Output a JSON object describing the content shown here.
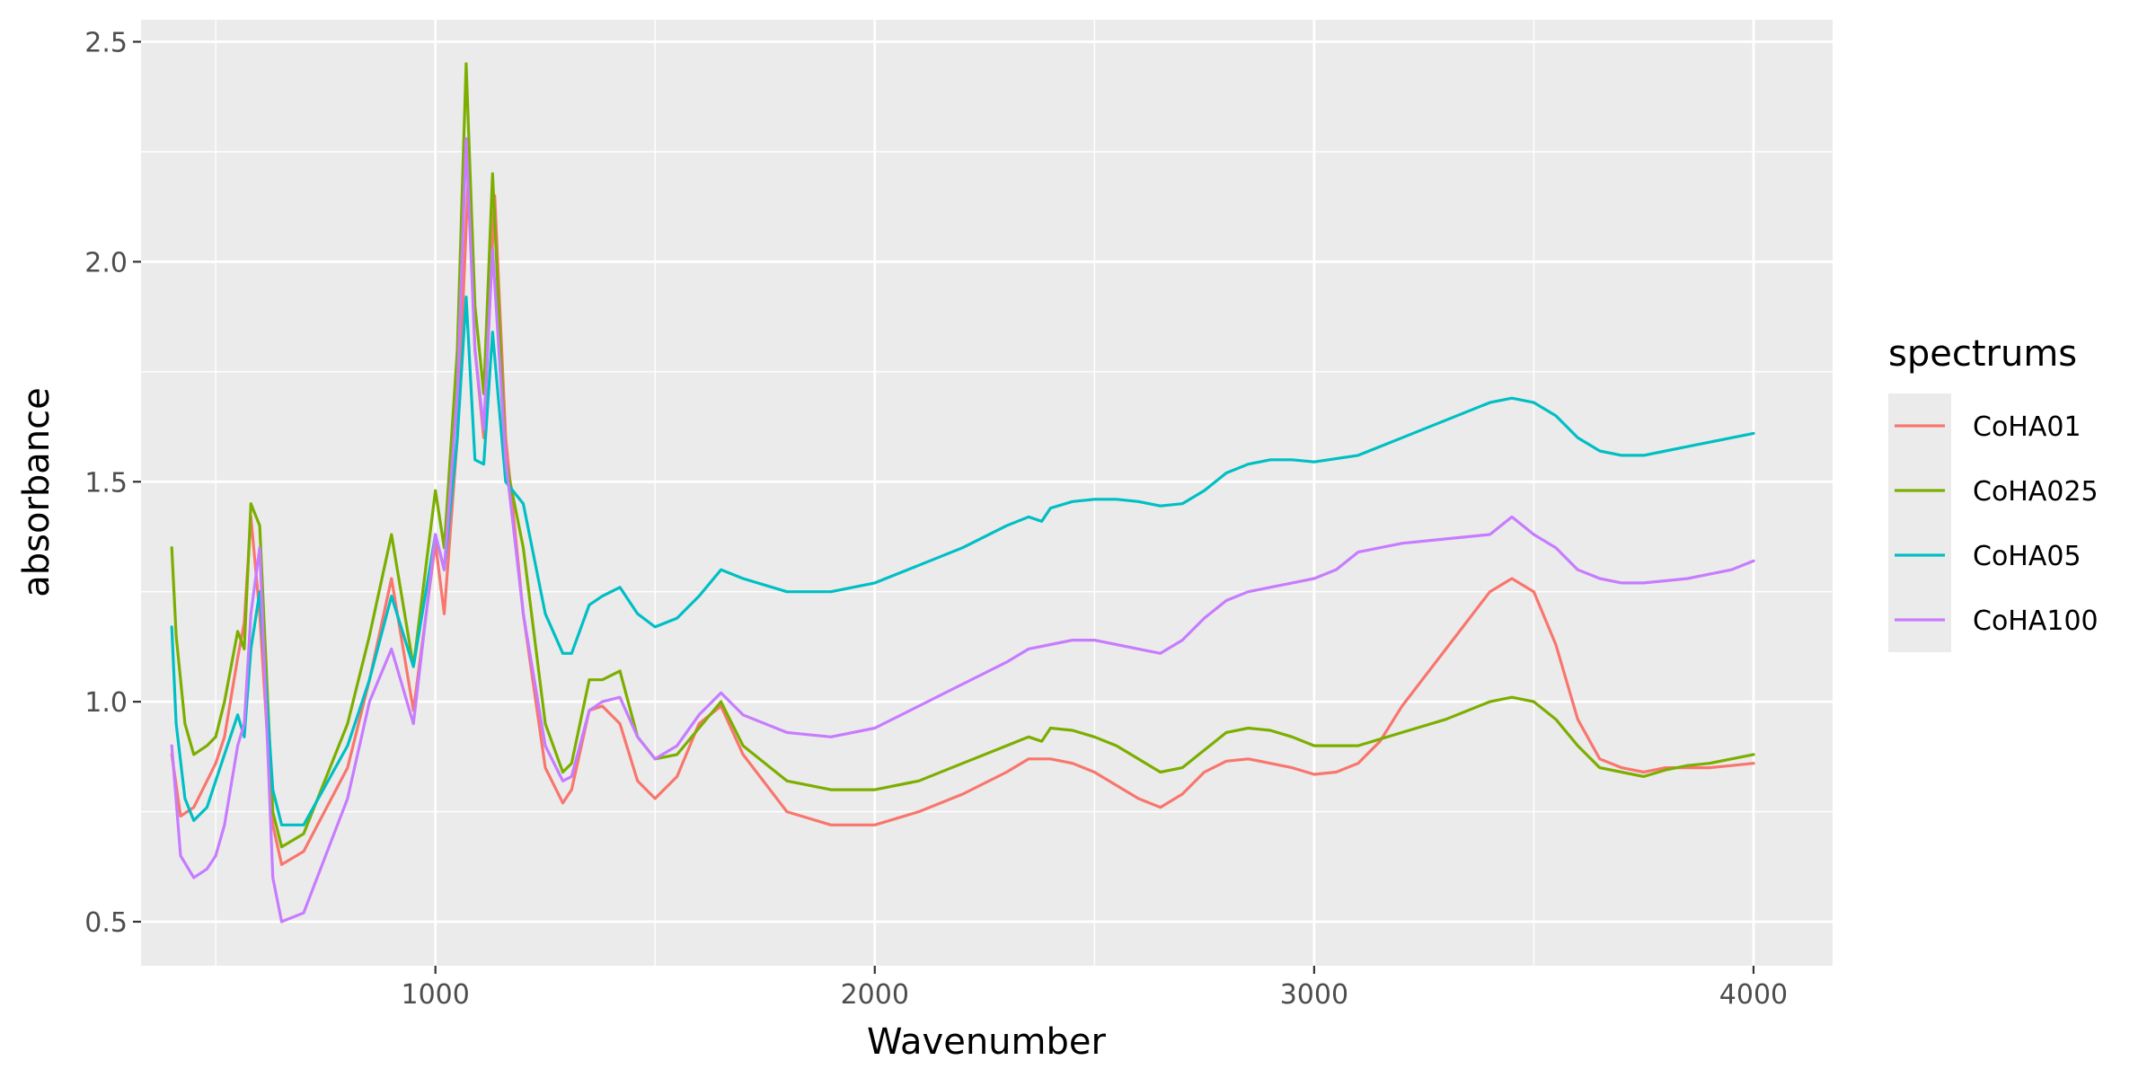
{
  "chart_data": {
    "type": "line",
    "title": "",
    "xlabel": "Wavenumber",
    "ylabel": "absorbance",
    "xlim": [
      330,
      4180
    ],
    "ylim": [
      0.4,
      2.55
    ],
    "xticks": [
      1000,
      2000,
      3000,
      4000
    ],
    "xtick_labels": [
      "1000",
      "2000",
      "3000",
      "4000"
    ],
    "yticks": [
      0.5,
      1.0,
      1.5,
      2.0,
      2.5
    ],
    "ytick_labels": [
      "0.5",
      "1.0",
      "1.5",
      "2.0",
      "2.5"
    ],
    "grid": true,
    "legend": {
      "title": "spectrums",
      "position": "right"
    },
    "series": [
      {
        "name": "CoHA01",
        "color": "#F8766D",
        "x": [
          400,
          420,
          450,
          480,
          500,
          520,
          550,
          565,
          580,
          600,
          630,
          650,
          700,
          800,
          850,
          900,
          950,
          1000,
          1020,
          1050,
          1075,
          1090,
          1110,
          1135,
          1160,
          1200,
          1250,
          1290,
          1310,
          1350,
          1380,
          1420,
          1460,
          1500,
          1550,
          1600,
          1650,
          1700,
          1800,
          1900,
          2000,
          2100,
          2200,
          2300,
          2350,
          2400,
          2450,
          2500,
          2550,
          2600,
          2650,
          2700,
          2750,
          2800,
          2850,
          2900,
          2950,
          3000,
          3050,
          3100,
          3150,
          3200,
          3300,
          3400,
          3450,
          3500,
          3550,
          3600,
          3650,
          3700,
          3750,
          3800,
          3850,
          3900,
          3950,
          4000
        ],
        "y": [
          0.88,
          0.74,
          0.76,
          0.82,
          0.86,
          0.92,
          1.1,
          1.18,
          1.42,
          1.2,
          0.72,
          0.63,
          0.66,
          0.85,
          1.05,
          1.28,
          0.98,
          1.36,
          1.2,
          1.6,
          2.2,
          1.8,
          1.6,
          2.15,
          1.6,
          1.2,
          0.85,
          0.77,
          0.8,
          0.98,
          0.99,
          0.95,
          0.82,
          0.78,
          0.83,
          0.95,
          0.99,
          0.88,
          0.75,
          0.72,
          0.72,
          0.75,
          0.79,
          0.84,
          0.87,
          0.87,
          0.86,
          0.84,
          0.81,
          0.78,
          0.76,
          0.79,
          0.84,
          0.865,
          0.87,
          0.86,
          0.85,
          0.835,
          0.84,
          0.86,
          0.91,
          0.99,
          1.12,
          1.25,
          1.28,
          1.25,
          1.13,
          0.96,
          0.87,
          0.85,
          0.84,
          0.85,
          0.85,
          0.85,
          0.855,
          0.86
        ]
      },
      {
        "name": "CoHA025",
        "color": "#7CAE00",
        "x": [
          400,
          410,
          430,
          450,
          480,
          500,
          520,
          550,
          565,
          580,
          600,
          630,
          650,
          700,
          800,
          850,
          900,
          950,
          1000,
          1020,
          1050,
          1070,
          1090,
          1110,
          1130,
          1160,
          1200,
          1250,
          1290,
          1310,
          1350,
          1380,
          1420,
          1460,
          1500,
          1550,
          1600,
          1650,
          1700,
          1800,
          1900,
          2000,
          2100,
          2200,
          2300,
          2350,
          2380,
          2400,
          2450,
          2500,
          2550,
          2600,
          2650,
          2700,
          2750,
          2800,
          2850,
          2900,
          2950,
          3000,
          3100,
          3200,
          3300,
          3400,
          3450,
          3500,
          3550,
          3600,
          3650,
          3700,
          3750,
          3800,
          3850,
          3900,
          3950,
          4000
        ],
        "y": [
          1.35,
          1.15,
          0.95,
          0.88,
          0.9,
          0.92,
          1.0,
          1.16,
          1.12,
          1.45,
          1.4,
          0.75,
          0.67,
          0.7,
          0.95,
          1.15,
          1.38,
          1.08,
          1.48,
          1.35,
          1.8,
          2.45,
          1.9,
          1.7,
          2.2,
          1.55,
          1.35,
          0.95,
          0.84,
          0.86,
          1.05,
          1.05,
          1.07,
          0.92,
          0.87,
          0.88,
          0.94,
          1.0,
          0.9,
          0.82,
          0.8,
          0.8,
          0.82,
          0.86,
          0.9,
          0.92,
          0.91,
          0.94,
          0.935,
          0.92,
          0.9,
          0.87,
          0.84,
          0.85,
          0.89,
          0.93,
          0.94,
          0.935,
          0.92,
          0.9,
          0.9,
          0.93,
          0.96,
          1.0,
          1.01,
          1.0,
          0.96,
          0.9,
          0.85,
          0.84,
          0.83,
          0.845,
          0.855,
          0.86,
          0.87,
          0.88
        ]
      },
      {
        "name": "CoHA05",
        "color": "#00BFC4",
        "x": [
          400,
          410,
          430,
          450,
          480,
          500,
          520,
          550,
          565,
          580,
          600,
          630,
          650,
          700,
          800,
          850,
          900,
          950,
          1000,
          1020,
          1050,
          1070,
          1090,
          1110,
          1130,
          1160,
          1200,
          1250,
          1290,
          1310,
          1350,
          1380,
          1420,
          1460,
          1500,
          1550,
          1600,
          1650,
          1700,
          1800,
          1900,
          2000,
          2100,
          2200,
          2300,
          2350,
          2380,
          2400,
          2450,
          2500,
          2550,
          2600,
          2650,
          2700,
          2750,
          2800,
          2850,
          2900,
          2950,
          3000,
          3100,
          3200,
          3300,
          3400,
          3450,
          3500,
          3550,
          3600,
          3650,
          3700,
          3750,
          3800,
          3850,
          3900,
          3950,
          4000
        ],
        "y": [
          1.17,
          0.95,
          0.78,
          0.73,
          0.76,
          0.82,
          0.88,
          0.97,
          0.92,
          1.12,
          1.25,
          0.8,
          0.72,
          0.72,
          0.9,
          1.05,
          1.24,
          1.08,
          1.38,
          1.3,
          1.6,
          1.92,
          1.55,
          1.54,
          1.84,
          1.5,
          1.45,
          1.2,
          1.11,
          1.11,
          1.22,
          1.24,
          1.26,
          1.2,
          1.17,
          1.19,
          1.24,
          1.3,
          1.28,
          1.25,
          1.25,
          1.27,
          1.31,
          1.35,
          1.4,
          1.42,
          1.41,
          1.44,
          1.455,
          1.46,
          1.46,
          1.455,
          1.445,
          1.45,
          1.48,
          1.52,
          1.54,
          1.55,
          1.55,
          1.545,
          1.56,
          1.6,
          1.64,
          1.68,
          1.69,
          1.68,
          1.65,
          1.6,
          1.57,
          1.56,
          1.56,
          1.57,
          1.58,
          1.59,
          1.6,
          1.61
        ]
      },
      {
        "name": "CoHA100",
        "color": "#C77CFF",
        "x": [
          400,
          420,
          450,
          480,
          500,
          520,
          550,
          565,
          580,
          600,
          630,
          650,
          700,
          800,
          850,
          900,
          950,
          1000,
          1020,
          1050,
          1070,
          1090,
          1110,
          1130,
          1160,
          1200,
          1250,
          1290,
          1310,
          1350,
          1380,
          1420,
          1460,
          1500,
          1550,
          1600,
          1650,
          1700,
          1800,
          1900,
          2000,
          2100,
          2200,
          2300,
          2350,
          2400,
          2450,
          2500,
          2550,
          2600,
          2650,
          2700,
          2750,
          2800,
          2850,
          2900,
          2950,
          3000,
          3050,
          3100,
          3150,
          3200,
          3300,
          3400,
          3450,
          3500,
          3550,
          3600,
          3650,
          3700,
          3750,
          3800,
          3850,
          3900,
          3950,
          4000
        ],
        "y": [
          0.9,
          0.65,
          0.6,
          0.62,
          0.65,
          0.72,
          0.9,
          0.95,
          1.2,
          1.35,
          0.6,
          0.5,
          0.52,
          0.78,
          1.0,
          1.12,
          0.95,
          1.38,
          1.3,
          1.7,
          2.28,
          1.8,
          1.62,
          2.03,
          1.55,
          1.2,
          0.9,
          0.82,
          0.83,
          0.98,
          1.0,
          1.01,
          0.92,
          0.87,
          0.9,
          0.97,
          1.02,
          0.97,
          0.93,
          0.92,
          0.94,
          0.99,
          1.04,
          1.09,
          1.12,
          1.13,
          1.14,
          1.14,
          1.13,
          1.12,
          1.11,
          1.14,
          1.19,
          1.23,
          1.25,
          1.26,
          1.27,
          1.28,
          1.3,
          1.34,
          1.35,
          1.36,
          1.37,
          1.38,
          1.42,
          1.38,
          1.35,
          1.3,
          1.28,
          1.27,
          1.27,
          1.275,
          1.28,
          1.29,
          1.3,
          1.32
        ]
      }
    ]
  }
}
